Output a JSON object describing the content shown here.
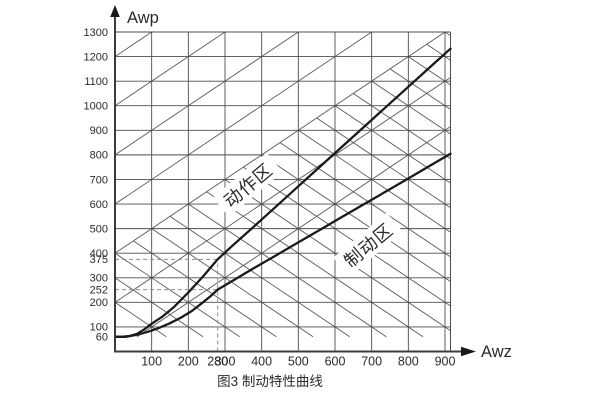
{
  "figure_caption": "图3 制动特性曲线",
  "chart_data": {
    "type": "line",
    "title": "图3 制动特性曲线",
    "xlabel": "Awz",
    "ylabel": "Awp",
    "xlim": [
      0,
      915
    ],
    "ylim": [
      0,
      1300
    ],
    "grid": true,
    "legend_position": "none",
    "x_ticks": [
      100,
      200,
      280,
      300,
      400,
      500,
      600,
      700,
      800,
      900
    ],
    "y_ticks": [
      1300,
      1200,
      1100,
      1000,
      900,
      800,
      700,
      600,
      500,
      400,
      375,
      300,
      252,
      200,
      100,
      60
    ],
    "x_gridlines": [
      100,
      200,
      300,
      400,
      500,
      600,
      700,
      800,
      900
    ],
    "y_gridlines": [
      100,
      200,
      300,
      400,
      500,
      600,
      700,
      800,
      900,
      1000,
      1100,
      1200,
      1300
    ],
    "guides": {
      "vertical_x": 280,
      "horizontal_ys": [
        375,
        252
      ]
    },
    "key_points": [
      {
        "x": 280,
        "y": 375
      },
      {
        "x": 280,
        "y": 252
      }
    ],
    "regions": [
      {
        "label": "动作区",
        "x": 363,
        "y": 677,
        "angle_deg": -40
      },
      {
        "label": "制动区",
        "x": 691,
        "y": 433,
        "angle_deg": -40
      }
    ],
    "series": [
      {
        "name": "upper_curve",
        "points": [
          [
            0,
            60
          ],
          [
            20,
            60
          ],
          [
            40,
            63
          ],
          [
            60,
            72
          ],
          [
            80,
            90
          ],
          [
            100,
            113
          ],
          [
            130,
            143
          ],
          [
            160,
            180
          ],
          [
            200,
            240
          ],
          [
            240,
            305
          ],
          [
            280,
            375
          ],
          [
            320,
            430
          ],
          [
            380,
            510
          ],
          [
            440,
            591
          ],
          [
            500,
            672
          ],
          [
            560,
            753
          ],
          [
            620,
            834
          ],
          [
            680,
            915
          ],
          [
            740,
            996
          ],
          [
            800,
            1077
          ],
          [
            860,
            1158
          ],
          [
            915,
            1232
          ]
        ]
      },
      {
        "name": "lower_curve",
        "points": [
          [
            0,
            60
          ],
          [
            30,
            60
          ],
          [
            60,
            68
          ],
          [
            90,
            80
          ],
          [
            120,
            96
          ],
          [
            150,
            115
          ],
          [
            180,
            138
          ],
          [
            210,
            165
          ],
          [
            240,
            200
          ],
          [
            260,
            224
          ],
          [
            280,
            252
          ],
          [
            330,
            296
          ],
          [
            380,
            340
          ],
          [
            440,
            392
          ],
          [
            500,
            444
          ],
          [
            560,
            496
          ],
          [
            620,
            548
          ],
          [
            680,
            600
          ],
          [
            740,
            652
          ],
          [
            800,
            704
          ],
          [
            860,
            757
          ],
          [
            915,
            805
          ]
        ]
      }
    ],
    "hatch": {
      "up_intercepts": [
        0,
        200,
        400,
        600,
        800,
        1000,
        1200
      ],
      "down_intercepts": [
        200,
        300,
        400,
        500,
        600,
        700,
        800,
        900,
        1000,
        1100,
        1200,
        1300,
        1400,
        1500,
        1600,
        1700,
        1800,
        1900,
        2000,
        2100,
        2200
      ],
      "down_upper_bound_line": {
        "slope": 1,
        "intercept": 400
      },
      "min_y": 60
    },
    "colors": {
      "grid": "#4e4e4e",
      "hatch": "#5a5a5a",
      "curve": "#1a1a1a",
      "dashed": "#8c8c8c",
      "axis": "#3c3c3c",
      "text": "#2b2b2b",
      "background": "#ffffff",
      "label_halo": "#ffffff"
    }
  }
}
